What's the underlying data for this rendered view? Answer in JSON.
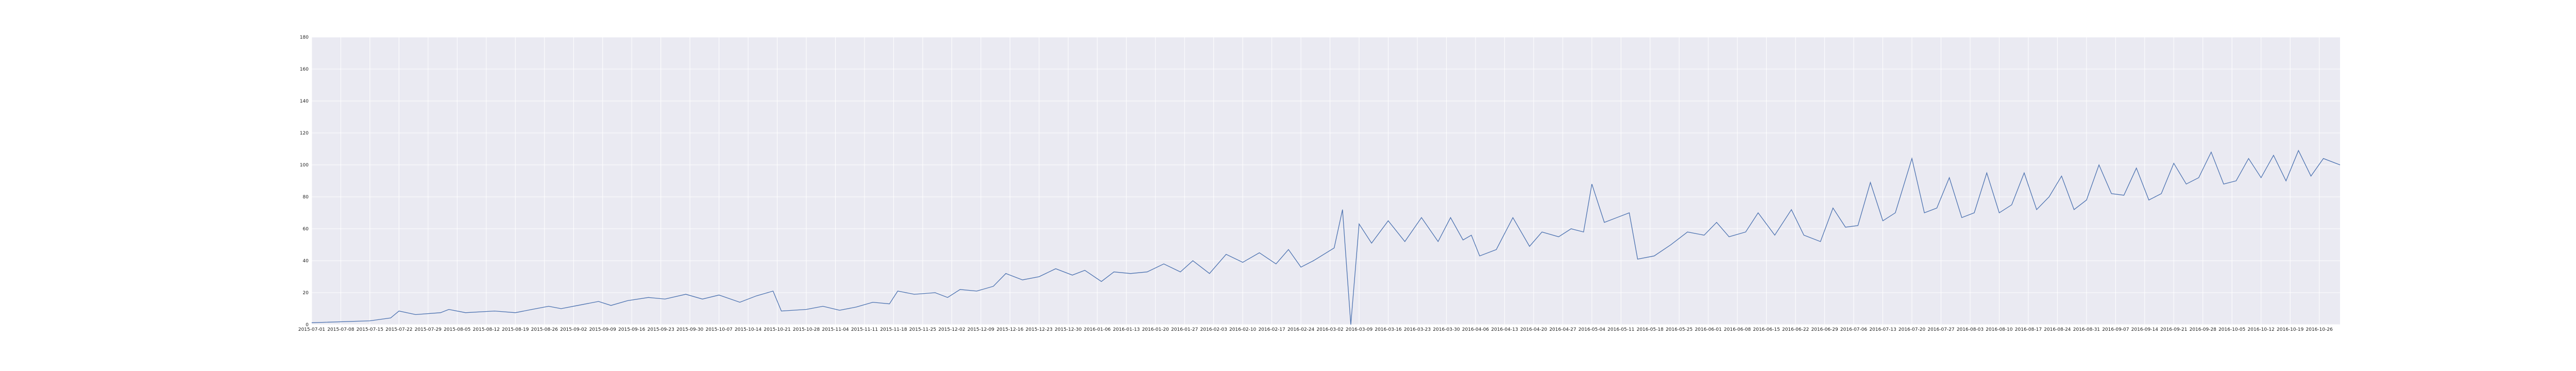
{
  "chart_data": {
    "type": "line",
    "title": "",
    "xlabel": "",
    "ylabel": "",
    "grid": true,
    "legend": "none",
    "colors": {
      "line": "#4c72b0",
      "background": "#eaeaf2",
      "grid": "#ffffff"
    },
    "ylim": [
      0,
      180
    ],
    "yticks": [
      "0",
      "20",
      "40",
      "60",
      "80",
      "100",
      "120",
      "140",
      "160",
      "180"
    ],
    "xlim": [
      "2015-07-01",
      "2016-10-31"
    ],
    "xtick_format": "YYYY-MM-DD",
    "xticks": [
      "2015-07-01",
      "2015-07-08",
      "2015-07-15",
      "2015-07-22",
      "2015-07-29",
      "2015-08-05",
      "2015-08-12",
      "2015-08-19",
      "2015-08-26",
      "2015-09-02",
      "2015-09-09",
      "2015-09-16",
      "2015-09-23",
      "2015-09-30",
      "2015-10-07",
      "2015-10-14",
      "2015-10-21",
      "2015-10-28",
      "2015-11-04",
      "2015-11-11",
      "2015-11-18",
      "2015-11-25",
      "2015-12-02",
      "2015-12-09",
      "2015-12-16",
      "2015-12-23",
      "2015-12-30",
      "2016-01-06",
      "2016-01-13",
      "2016-01-20",
      "2016-01-27",
      "2016-02-03",
      "2016-02-10",
      "2016-02-17",
      "2016-02-24",
      "2016-03-02",
      "2016-03-09",
      "2016-03-16",
      "2016-03-23",
      "2016-03-30",
      "2016-04-06",
      "2016-04-13",
      "2016-04-20",
      "2016-04-27",
      "2016-05-04",
      "2016-05-11",
      "2016-05-18",
      "2016-05-25",
      "2016-06-01",
      "2016-06-08",
      "2016-06-15",
      "2016-06-22",
      "2016-06-29",
      "2016-07-06",
      "2016-07-13",
      "2016-07-20",
      "2016-07-27",
      "2016-08-03",
      "2016-08-10",
      "2016-08-17",
      "2016-08-24",
      "2016-08-31",
      "2016-09-07",
      "2016-09-14",
      "2016-09-21",
      "2016-09-28",
      "2016-10-05",
      "2016-10-12",
      "2016-10-19",
      "2016-10-26"
    ],
    "series": [
      {
        "start": "2015-07-01",
        "points": [
          [
            "2015-07-01",
            1.2
          ],
          [
            "2015-07-15",
            2.4
          ],
          [
            "2015-07-20",
            4.2
          ],
          [
            "2015-07-22",
            8.5
          ],
          [
            "2015-07-26",
            6.3
          ],
          [
            "2015-08-01",
            7.5
          ],
          [
            "2015-08-03",
            9.5
          ],
          [
            "2015-08-07",
            7.5
          ],
          [
            "2015-08-14",
            8.5
          ],
          [
            "2015-08-19",
            7.5
          ],
          [
            "2015-08-23",
            9.5
          ],
          [
            "2015-08-27",
            11.5
          ],
          [
            "2015-08-30",
            10
          ],
          [
            "2015-09-03",
            12
          ],
          [
            "2015-09-08",
            14.5
          ],
          [
            "2015-09-11",
            12
          ],
          [
            "2015-09-15",
            15
          ],
          [
            "2015-09-20",
            17
          ],
          [
            "2015-09-24",
            16
          ],
          [
            "2015-09-29",
            19
          ],
          [
            "2015-10-03",
            16
          ],
          [
            "2015-10-07",
            18.5
          ],
          [
            "2015-10-12",
            14
          ],
          [
            "2015-10-16",
            18
          ],
          [
            "2015-10-20",
            21
          ],
          [
            "2015-10-22",
            8.5
          ],
          [
            "2015-10-28",
            9.5
          ],
          [
            "2015-11-01",
            11.5
          ],
          [
            "2015-11-05",
            9
          ],
          [
            "2015-11-09",
            11
          ],
          [
            "2015-11-13",
            14
          ],
          [
            "2015-11-17",
            13
          ],
          [
            "2015-11-19",
            21
          ],
          [
            "2015-11-23",
            19
          ],
          [
            "2015-11-28",
            20
          ],
          [
            "2015-12-01",
            17
          ],
          [
            "2015-12-04",
            22
          ],
          [
            "2015-12-08",
            21
          ],
          [
            "2015-12-12",
            24
          ],
          [
            "2015-12-15",
            32
          ],
          [
            "2015-12-19",
            28
          ],
          [
            "2015-12-23",
            30
          ],
          [
            "2015-12-27",
            35
          ],
          [
            "2015-12-31",
            31
          ],
          [
            "2016-01-03",
            34
          ],
          [
            "2016-01-07",
            27
          ],
          [
            "2016-01-10",
            33
          ],
          [
            "2016-01-14",
            32
          ],
          [
            "2016-01-18",
            33
          ],
          [
            "2016-01-22",
            38
          ],
          [
            "2016-01-26",
            33
          ],
          [
            "2016-01-29",
            40
          ],
          [
            "2016-02-02",
            32
          ],
          [
            "2016-02-06",
            44
          ],
          [
            "2016-02-10",
            39
          ],
          [
            "2016-02-14",
            45
          ],
          [
            "2016-02-18",
            38
          ],
          [
            "2016-02-21",
            47
          ],
          [
            "2016-02-24",
            36
          ],
          [
            "2016-02-27",
            40
          ],
          [
            "2016-03-03",
            48
          ],
          [
            "2016-03-05",
            72
          ],
          [
            "2016-03-07",
            0
          ],
          [
            "2016-03-09",
            63
          ],
          [
            "2016-03-12",
            51
          ],
          [
            "2016-03-16",
            65
          ],
          [
            "2016-03-20",
            52
          ],
          [
            "2016-03-24",
            67
          ],
          [
            "2016-03-28",
            52
          ],
          [
            "2016-03-31",
            67
          ],
          [
            "2016-04-03",
            53
          ],
          [
            "2016-04-05",
            56
          ],
          [
            "2016-04-07",
            43
          ],
          [
            "2016-04-11",
            47
          ],
          [
            "2016-04-15",
            67
          ],
          [
            "2016-04-19",
            49
          ],
          [
            "2016-04-22",
            58
          ],
          [
            "2016-04-26",
            55
          ],
          [
            "2016-04-29",
            60
          ],
          [
            "2016-05-02",
            58
          ],
          [
            "2016-05-04",
            88
          ],
          [
            "2016-05-07",
            64
          ],
          [
            "2016-05-10",
            67
          ],
          [
            "2016-05-13",
            70
          ],
          [
            "2016-05-15",
            41
          ],
          [
            "2016-05-19",
            43
          ],
          [
            "2016-05-23",
            50
          ],
          [
            "2016-05-27",
            58
          ],
          [
            "2016-05-31",
            56
          ],
          [
            "2016-06-03",
            64
          ],
          [
            "2016-06-06",
            55
          ],
          [
            "2016-06-10",
            58
          ],
          [
            "2016-06-13",
            70
          ],
          [
            "2016-06-17",
            56
          ],
          [
            "2016-06-21",
            72
          ],
          [
            "2016-06-24",
            56
          ],
          [
            "2016-06-28",
            52
          ],
          [
            "2016-07-01",
            73
          ],
          [
            "2016-07-04",
            61
          ],
          [
            "2016-07-07",
            62
          ],
          [
            "2016-07-10",
            89
          ],
          [
            "2016-07-13",
            65
          ],
          [
            "2016-07-16",
            70
          ],
          [
            "2016-07-20",
            104
          ],
          [
            "2016-07-23",
            70
          ],
          [
            "2016-07-26",
            73
          ],
          [
            "2016-07-29",
            92
          ],
          [
            "2016-08-01",
            67
          ],
          [
            "2016-08-04",
            70
          ],
          [
            "2016-08-07",
            95
          ],
          [
            "2016-08-10",
            70
          ],
          [
            "2016-08-13",
            75
          ],
          [
            "2016-08-16",
            95
          ],
          [
            "2016-08-19",
            72
          ],
          [
            "2016-08-22",
            80
          ],
          [
            "2016-08-25",
            93
          ],
          [
            "2016-08-28",
            72
          ],
          [
            "2016-08-31",
            78
          ],
          [
            "2016-09-03",
            100
          ],
          [
            "2016-09-06",
            82
          ],
          [
            "2016-09-09",
            81
          ],
          [
            "2016-09-12",
            98
          ],
          [
            "2016-09-15",
            78
          ],
          [
            "2016-09-18",
            82
          ],
          [
            "2016-09-21",
            101
          ],
          [
            "2016-09-24",
            88
          ],
          [
            "2016-09-27",
            92
          ],
          [
            "2016-09-30",
            108
          ],
          [
            "2016-10-03",
            88
          ],
          [
            "2016-10-06",
            90
          ],
          [
            "2016-10-09",
            104
          ],
          [
            "2016-10-12",
            92
          ],
          [
            "2016-10-15",
            106
          ],
          [
            "2016-10-18",
            90
          ],
          [
            "2016-10-21",
            109
          ],
          [
            "2016-10-24",
            93
          ],
          [
            "2016-10-27",
            104
          ],
          [
            "2016-10-31",
            100
          ]
        ]
      }
    ]
  }
}
